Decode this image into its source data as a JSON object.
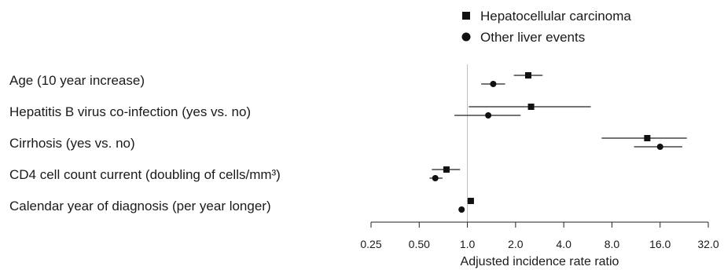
{
  "chart_data": {
    "type": "forest",
    "xlabel": "Adjusted incidence rate ratio",
    "x_scale": "log2",
    "xlim": [
      0.25,
      32.0
    ],
    "x_ticks": [
      "0.25",
      "0.50",
      "1.0",
      "2.0",
      "4.0",
      "8.0",
      "16.0",
      "32.0"
    ],
    "reference_line": 1.0,
    "legend": {
      "placement": "top-right",
      "entries": [
        {
          "name": "Hepatocellular carcinoma",
          "marker": "square"
        },
        {
          "name": "Other liver events",
          "marker": "circle"
        }
      ]
    },
    "rows": [
      {
        "label": "Age (10 year increase)",
        "series": [
          {
            "name": "Hepatocellular carcinoma",
            "estimate": 2.4,
            "lower": 1.95,
            "upper": 2.95
          },
          {
            "name": "Other liver events",
            "estimate": 1.45,
            "lower": 1.22,
            "upper": 1.72
          }
        ]
      },
      {
        "label": "Hepatitis B virus co-infection (yes vs. no)",
        "series": [
          {
            "name": "Hepatocellular carcinoma",
            "estimate": 2.5,
            "lower": 1.02,
            "upper": 5.9
          },
          {
            "name": "Other liver events",
            "estimate": 1.35,
            "lower": 0.83,
            "upper": 2.15
          }
        ]
      },
      {
        "label": "Cirrhosis (yes vs. no)",
        "series": [
          {
            "name": "Hepatocellular carcinoma",
            "estimate": 13.3,
            "lower": 6.9,
            "upper": 23.5
          },
          {
            "name": "Other liver events",
            "estimate": 16.0,
            "lower": 11.0,
            "upper": 22.0
          }
        ]
      },
      {
        "label": "CD4 cell count current (doubling of cells/mm³)",
        "series": [
          {
            "name": "Hepatocellular carcinoma",
            "estimate": 0.74,
            "lower": 0.6,
            "upper": 0.9
          },
          {
            "name": "Other liver events",
            "estimate": 0.63,
            "lower": 0.58,
            "upper": 0.7
          }
        ]
      },
      {
        "label": "Calendar year of diagnosis (per year longer)",
        "series": [
          {
            "name": "Hepatocellular carcinoma",
            "estimate": 1.05,
            "lower": 1.0,
            "upper": 1.1
          },
          {
            "name": "Other liver events",
            "estimate": 0.92,
            "lower": 0.89,
            "upper": 0.95
          }
        ]
      }
    ]
  }
}
